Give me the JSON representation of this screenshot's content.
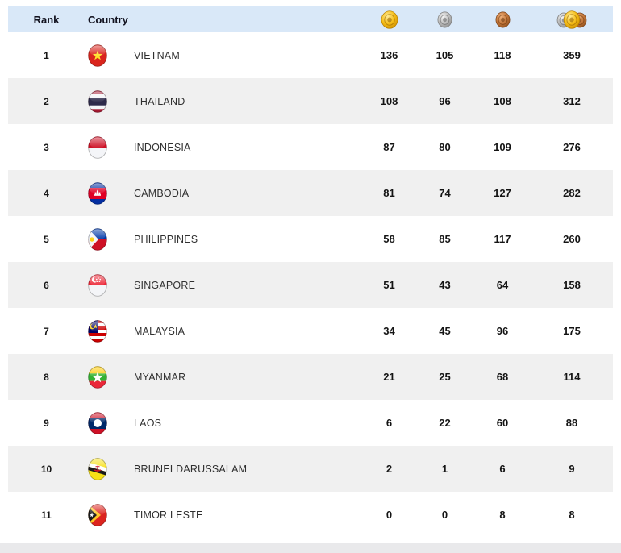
{
  "chart_data": {
    "type": "table",
    "columns": [
      "Rank",
      "Country",
      "Gold",
      "Silver",
      "Bronze",
      "Total"
    ],
    "rows": [
      {
        "rank": "1",
        "country": "VIETNAM",
        "flag": "vietnam",
        "gold": "136",
        "silver": "105",
        "bronze": "118",
        "total": "359"
      },
      {
        "rank": "2",
        "country": "THAILAND",
        "flag": "thailand",
        "gold": "108",
        "silver": "96",
        "bronze": "108",
        "total": "312"
      },
      {
        "rank": "3",
        "country": "INDONESIA",
        "flag": "indonesia",
        "gold": "87",
        "silver": "80",
        "bronze": "109",
        "total": "276"
      },
      {
        "rank": "4",
        "country": "CAMBODIA",
        "flag": "cambodia",
        "gold": "81",
        "silver": "74",
        "bronze": "127",
        "total": "282"
      },
      {
        "rank": "5",
        "country": "PHILIPPINES",
        "flag": "philippines",
        "gold": "58",
        "silver": "85",
        "bronze": "117",
        "total": "260"
      },
      {
        "rank": "6",
        "country": "SINGAPORE",
        "flag": "singapore",
        "gold": "51",
        "silver": "43",
        "bronze": "64",
        "total": "158"
      },
      {
        "rank": "7",
        "country": "MALAYSIA",
        "flag": "malaysia",
        "gold": "34",
        "silver": "45",
        "bronze": "96",
        "total": "175"
      },
      {
        "rank": "8",
        "country": "MYANMAR",
        "flag": "myanmar",
        "gold": "21",
        "silver": "25",
        "bronze": "68",
        "total": "114"
      },
      {
        "rank": "9",
        "country": "LAOS",
        "flag": "laos",
        "gold": "6",
        "silver": "22",
        "bronze": "60",
        "total": "88"
      },
      {
        "rank": "10",
        "country": "BRUNEI DARUSSALAM",
        "flag": "brunei",
        "gold": "2",
        "silver": "1",
        "bronze": "6",
        "total": "9"
      },
      {
        "rank": "11",
        "country": "TIMOR LESTE",
        "flag": "timor",
        "gold": "0",
        "silver": "0",
        "bronze": "8",
        "total": "8"
      }
    ]
  },
  "header": {
    "rank_label": "Rank",
    "country_label": "Country",
    "medal_icons": [
      "gold-medal-icon",
      "silver-medal-icon",
      "bronze-medal-icon",
      "total-medals-icon"
    ]
  },
  "colors": {
    "header_bg": "#d9e8f8",
    "row_bg": "#ffffff",
    "row_alt_bg": "#f0f0f0",
    "footer_strip": "#e9e9eb",
    "gold": "#f5bd17",
    "silver": "#bdbdbd",
    "bronze": "#c3763a"
  }
}
